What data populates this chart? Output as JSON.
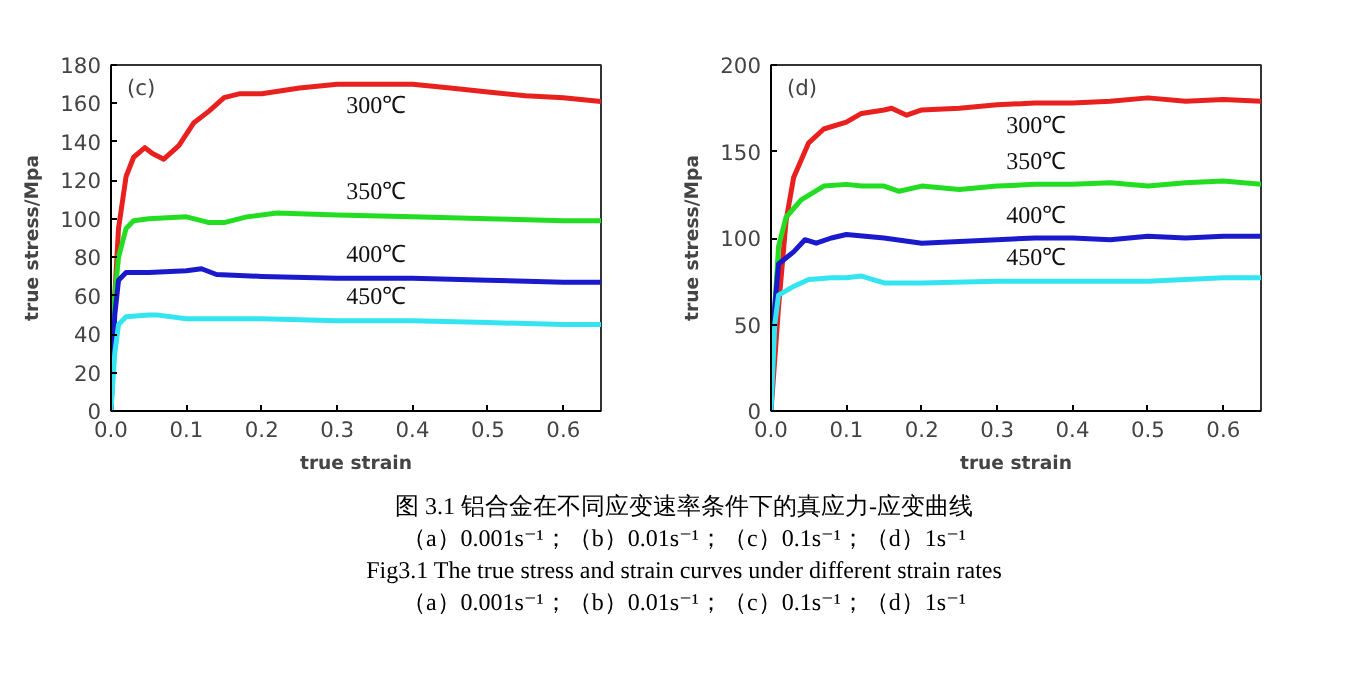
{
  "chart_data": [
    {
      "type": "line",
      "title": "(c)",
      "xlabel": "true strain",
      "ylabel": "true stress/Mpa",
      "xlim": [
        0,
        0.65
      ],
      "ylim": [
        0,
        180
      ],
      "xticks": [
        {
          "value": 0,
          "label": "0.0"
        },
        0.1,
        0.2,
        0.3,
        0.4,
        0.5,
        0.6
      ],
      "yticks": [
        0,
        20,
        40,
        60,
        80,
        100,
        120,
        140,
        160,
        180
      ],
      "grid": false,
      "legend": false,
      "line_style": "solid",
      "series": [
        {
          "name": "300℃",
          "color": "#e8201e",
          "x": [
            0,
            0.005,
            0.01,
            0.02,
            0.03,
            0.045,
            0.055,
            0.07,
            0.09,
            0.11,
            0.13,
            0.15,
            0.17,
            0.2,
            0.25,
            0.3,
            0.35,
            0.4,
            0.45,
            0.5,
            0.55,
            0.6,
            0.65
          ],
          "values": [
            0,
            60,
            95,
            122,
            132,
            137,
            134,
            131,
            138,
            150,
            156,
            163,
            165,
            165,
            168,
            170,
            170,
            170,
            168,
            166,
            164,
            163,
            161
          ]
        },
        {
          "name": "350℃",
          "color": "#22dd22",
          "x": [
            0,
            0.005,
            0.01,
            0.02,
            0.03,
            0.05,
            0.1,
            0.12,
            0.13,
            0.15,
            0.18,
            0.22,
            0.3,
            0.4,
            0.5,
            0.6,
            0.65
          ],
          "values": [
            0,
            60,
            80,
            95,
            99,
            100,
            101,
            99,
            98,
            98,
            101,
            103,
            102,
            101,
            100,
            99,
            99
          ]
        },
        {
          "name": "400℃",
          "color": "#1a1acc",
          "x": [
            0,
            0.005,
            0.01,
            0.02,
            0.05,
            0.1,
            0.12,
            0.14,
            0.2,
            0.3,
            0.4,
            0.5,
            0.6,
            0.65
          ],
          "values": [
            0,
            50,
            68,
            72,
            72,
            73,
            74,
            71,
            70,
            69,
            69,
            68,
            67,
            67
          ]
        },
        {
          "name": "450℃",
          "color": "#33e5f0",
          "x": [
            0,
            0.005,
            0.01,
            0.02,
            0.05,
            0.06,
            0.1,
            0.2,
            0.3,
            0.4,
            0.5,
            0.6,
            0.65
          ],
          "values": [
            0,
            30,
            45,
            49,
            50,
            50,
            48,
            48,
            47,
            47,
            46,
            45,
            45
          ]
        }
      ]
    },
    {
      "type": "line",
      "title": "(d)",
      "xlabel": "true strain",
      "ylabel": "true stress/Mpa",
      "xlim": [
        0,
        0.65
      ],
      "ylim": [
        0,
        200
      ],
      "xticks": [
        {
          "value": 0,
          "label": "0.0"
        },
        0.1,
        0.2,
        0.3,
        0.4,
        0.5,
        0.6
      ],
      "yticks": [
        0,
        50,
        100,
        150,
        200
      ],
      "grid": false,
      "legend": false,
      "line_style": "solid",
      "series": [
        {
          "name": "300℃",
          "color": "#e8201e",
          "x": [
            0,
            0.01,
            0.02,
            0.03,
            0.05,
            0.07,
            0.1,
            0.12,
            0.15,
            0.16,
            0.18,
            0.2,
            0.25,
            0.3,
            0.35,
            0.4,
            0.45,
            0.5,
            0.55,
            0.6,
            0.65
          ],
          "values": [
            0,
            60,
            110,
            135,
            155,
            163,
            167,
            172,
            174,
            175,
            171,
            174,
            175,
            177,
            178,
            178,
            179,
            181,
            179,
            180,
            179
          ]
        },
        {
          "name": "350℃",
          "color": "#22dd22",
          "x": [
            0,
            0.005,
            0.01,
            0.02,
            0.04,
            0.07,
            0.1,
            0.12,
            0.15,
            0.17,
            0.2,
            0.25,
            0.3,
            0.35,
            0.4,
            0.45,
            0.5,
            0.55,
            0.6,
            0.65
          ],
          "values": [
            0,
            60,
            95,
            112,
            122,
            130,
            131,
            130,
            130,
            127,
            130,
            128,
            130,
            131,
            131,
            132,
            130,
            132,
            133,
            131
          ]
        },
        {
          "name": "400℃",
          "color": "#1a1acc",
          "x": [
            0,
            0.005,
            0.01,
            0.03,
            0.045,
            0.06,
            0.08,
            0.1,
            0.15,
            0.2,
            0.25,
            0.3,
            0.35,
            0.4,
            0.45,
            0.5,
            0.55,
            0.6,
            0.65
          ],
          "values": [
            0,
            60,
            85,
            92,
            99,
            97,
            100,
            102,
            100,
            97,
            98,
            99,
            100,
            100,
            99,
            101,
            100,
            101,
            101
          ]
        },
        {
          "name": "450℃",
          "color": "#33e5f0",
          "x": [
            0,
            0.005,
            0.01,
            0.03,
            0.05,
            0.08,
            0.1,
            0.12,
            0.15,
            0.2,
            0.3,
            0.4,
            0.5,
            0.6,
            0.65
          ],
          "values": [
            0,
            50,
            67,
            72,
            76,
            77,
            77,
            78,
            74,
            74,
            75,
            75,
            75,
            77,
            77
          ]
        }
      ],
      "annotations": [
        "图 3.1  铝合金在不同应变速率条件下的真应力-应变曲线",
        "（a）0.001s⁻¹；（b）0.01s⁻¹；（c）0.1s⁻¹；（d）1s⁻¹",
        "Fig3.1 The true stress and strain curves under different strain rates",
        "（a）0.001s⁻¹；（b）0.01s⁻¹；（c）0.1s⁻¹；（d）1s⁻¹"
      ]
    }
  ]
}
